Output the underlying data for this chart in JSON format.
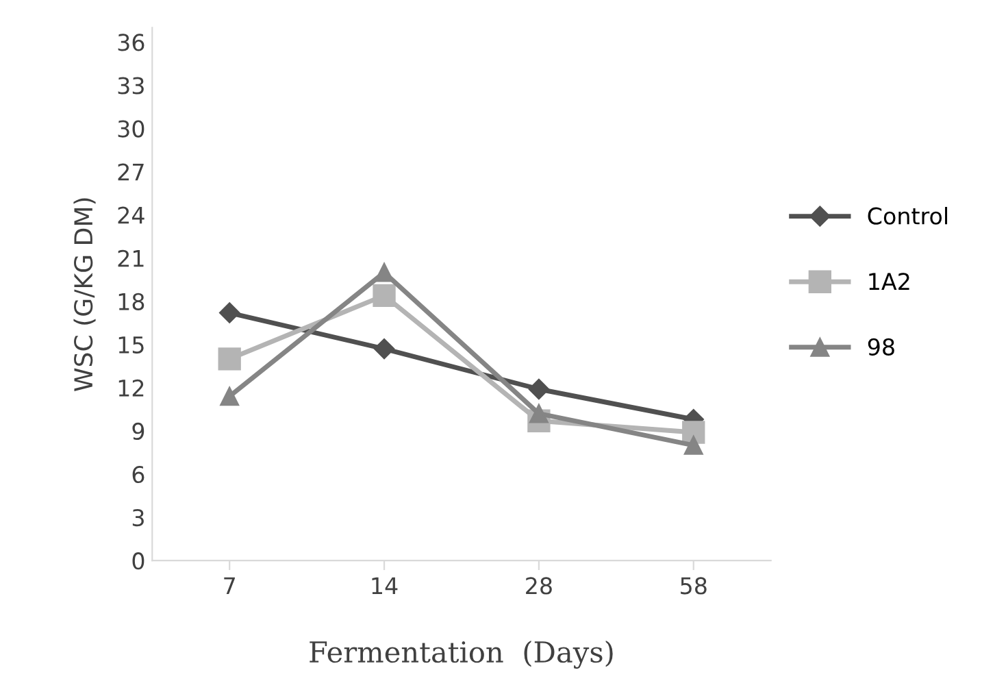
{
  "chart_data": {
    "type": "line",
    "xlabel": "Fermentation  (Days)",
    "ylabel": "WSC (G/KG DM)",
    "categories": [
      "7",
      "14",
      "28",
      "58"
    ],
    "series": [
      {
        "name": "Control",
        "color": "#505050",
        "values": [
          17.2,
          14.7,
          11.9,
          9.8
        ],
        "marker": "diamond"
      },
      {
        "name": "1A2",
        "color": "#b4b4b4",
        "values": [
          14.0,
          18.4,
          9.7,
          8.9
        ],
        "marker": "square"
      },
      {
        "name": "98",
        "color": "#858585",
        "values": [
          11.4,
          20.0,
          10.2,
          8.0
        ],
        "marker": "triangle"
      }
    ],
    "ylim": [
      0,
      37
    ],
    "yticks": [
      0,
      3,
      6,
      9,
      12,
      15,
      18,
      21,
      24,
      27,
      30,
      33,
      36
    ],
    "grid": false,
    "legend": "right",
    "line_style": "solid"
  }
}
